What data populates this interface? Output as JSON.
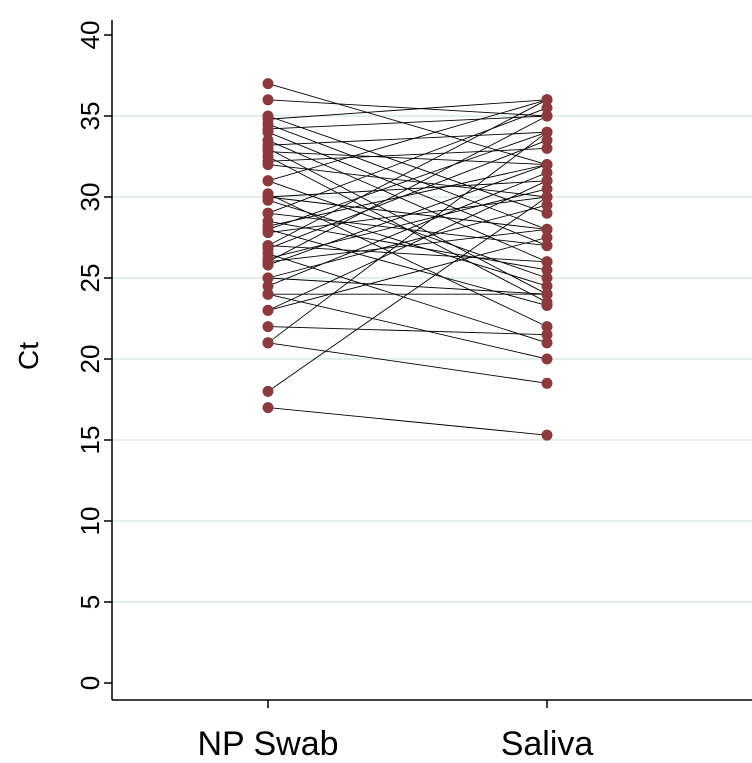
{
  "chart_data": {
    "type": "scatter",
    "subtype": "paired-slope",
    "title": "",
    "xlabel": "",
    "ylabel": "Ct",
    "ylim": [
      0,
      40
    ],
    "yticks": [
      0,
      5,
      10,
      15,
      20,
      25,
      30,
      35,
      40
    ],
    "categories": [
      "NP Swab",
      "Saliva"
    ],
    "grid": "horizontal",
    "marker_color": "#8B3A3E",
    "line_color": "#000000",
    "grid_color": "#E4ECEC",
    "pairs": [
      [
        37,
        32
      ],
      [
        36,
        35
      ],
      [
        35,
        29
      ],
      [
        34.8,
        36
      ],
      [
        34.5,
        28
      ],
      [
        34.2,
        35
      ],
      [
        34,
        27
      ],
      [
        33.5,
        26
      ],
      [
        33.2,
        34
      ],
      [
        33,
        24
      ],
      [
        32.8,
        32
      ],
      [
        32.5,
        23.5
      ],
      [
        32.2,
        33
      ],
      [
        32,
        30
      ],
      [
        31,
        25
      ],
      [
        31,
        36
      ],
      [
        30.2,
        22
      ],
      [
        30,
        31
      ],
      [
        30,
        28
      ],
      [
        29.8,
        24.5
      ],
      [
        29,
        35.5
      ],
      [
        29,
        27
      ],
      [
        28.5,
        25.5
      ],
      [
        28.2,
        32
      ],
      [
        28,
        34
      ],
      [
        28,
        23.3
      ],
      [
        27.8,
        30
      ],
      [
        27,
        36
      ],
      [
        27,
        26
      ],
      [
        26.8,
        33.5
      ],
      [
        26.5,
        21
      ],
      [
        26.2,
        30.5
      ],
      [
        26,
        35
      ],
      [
        26,
        28
      ],
      [
        25.8,
        32
      ],
      [
        25,
        29.5
      ],
      [
        25,
        24
      ],
      [
        24.5,
        31.5
      ],
      [
        24,
        24
      ],
      [
        24,
        20
      ],
      [
        23,
        27.5
      ],
      [
        23,
        31
      ],
      [
        22,
        21.5
      ],
      [
        21,
        18.5
      ],
      [
        21,
        34
      ],
      [
        18,
        30
      ],
      [
        17,
        15.3
      ]
    ]
  }
}
